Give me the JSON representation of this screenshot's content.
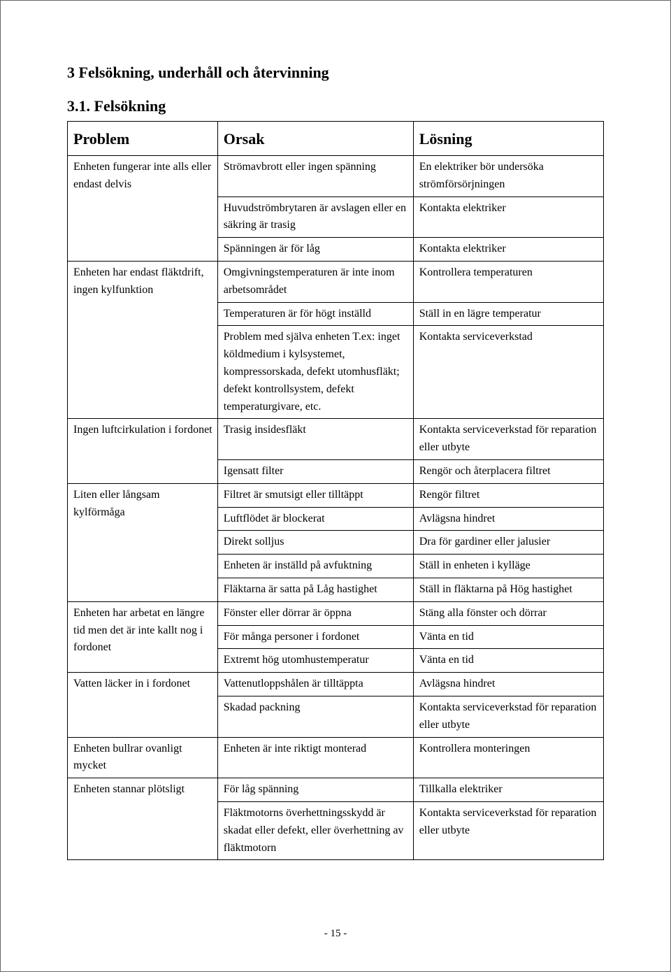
{
  "section_title": "3 Felsökning, underhåll och återvinning",
  "subsection_title": "3.1. Felsökning",
  "columns": {
    "problem": "Problem",
    "cause": "Orsak",
    "solution": "Lösning"
  },
  "rows": [
    {
      "group_first": true,
      "rowspan": 3,
      "problem": "Enheten fungerar inte alls eller endast delvis",
      "cause": "Strömavbrott eller ingen spänning",
      "solution": "En elektriker bör undersöka strömförsörjningen"
    },
    {
      "group_first": false,
      "rowspan": 0,
      "problem": "",
      "cause": "Huvudströmbrytaren är avslagen eller en säkring är trasig",
      "solution": "Kontakta elektriker"
    },
    {
      "group_first": false,
      "rowspan": 0,
      "problem": "",
      "cause": "Spänningen är för låg",
      "solution": "Kontakta elektriker"
    },
    {
      "group_first": true,
      "rowspan": 3,
      "problem": "Enheten har endast fläktdrift, ingen kylfunktion",
      "cause": "Omgivningstemperaturen är inte inom arbetsområdet",
      "solution": "Kontrollera temperaturen"
    },
    {
      "group_first": false,
      "rowspan": 0,
      "problem": "",
      "cause": "Temperaturen är för högt inställd",
      "solution": "Ställ in en lägre temperatur"
    },
    {
      "group_first": false,
      "rowspan": 0,
      "problem": "",
      "cause": "Problem med själva enheten T.ex: inget köldmedium i kylsystemet, kompressorskada, defekt utomhusfläkt; defekt kontrollsystem, defekt temperaturgivare, etc.",
      "solution": "Kontakta serviceverkstad"
    },
    {
      "group_first": true,
      "rowspan": 2,
      "problem": "Ingen luftcirkulation i fordonet",
      "cause": "Trasig insidesfläkt",
      "solution": "Kontakta serviceverkstad för reparation eller utbyte"
    },
    {
      "group_first": false,
      "rowspan": 0,
      "problem": "",
      "cause": "Igensatt filter",
      "solution": "Rengör och återplacera filtret"
    },
    {
      "group_first": true,
      "rowspan": 5,
      "problem": "Liten eller långsam kylförmåga",
      "cause": "Filtret är smutsigt eller tilltäppt",
      "solution": "Rengör filtret"
    },
    {
      "group_first": false,
      "rowspan": 0,
      "problem": "",
      "cause": "Luftflödet är blockerat",
      "solution": "Avlägsna hindret"
    },
    {
      "group_first": false,
      "rowspan": 0,
      "problem": "",
      "cause": "Direkt solljus",
      "solution": "Dra för gardiner eller jalusier"
    },
    {
      "group_first": false,
      "rowspan": 0,
      "problem": "",
      "cause": "Enheten är inställd på avfuktning",
      "solution": "Ställ in enheten i kylläge"
    },
    {
      "group_first": false,
      "rowspan": 0,
      "problem": "",
      "cause": "Fläktarna är satta på Låg hastighet",
      "solution": "Ställ in fläktarna på Hög hastighet"
    },
    {
      "group_first": true,
      "rowspan": 3,
      "problem": "Enheten har arbetat en längre tid men det är inte kallt nog i fordonet",
      "cause": "Fönster eller dörrar är öppna",
      "solution": "Stäng alla fönster och dörrar"
    },
    {
      "group_first": false,
      "rowspan": 0,
      "problem": "",
      "cause": "För många personer i fordonet",
      "solution": "Vänta en tid"
    },
    {
      "group_first": false,
      "rowspan": 0,
      "problem": "",
      "cause": "Extremt hög utomhustemperatur",
      "solution": "Vänta en tid"
    },
    {
      "group_first": true,
      "rowspan": 2,
      "problem": "Vatten läcker in i fordonet",
      "cause": "Vattenutloppshålen är tilltäppta",
      "solution": "Avlägsna hindret"
    },
    {
      "group_first": false,
      "rowspan": 0,
      "problem": "",
      "cause": "Skadad packning",
      "solution": "Kontakta serviceverkstad för reparation eller utbyte"
    },
    {
      "group_first": true,
      "rowspan": 1,
      "problem": "Enheten bullrar ovanligt mycket",
      "cause": "Enheten är inte riktigt monterad",
      "solution": "Kontrollera monteringen"
    },
    {
      "group_first": true,
      "rowspan": 2,
      "problem": "Enheten stannar plötsligt",
      "cause": "För låg spänning",
      "solution": "Tillkalla elektriker"
    },
    {
      "group_first": false,
      "rowspan": 0,
      "problem": "",
      "cause": "Fläktmotorns överhettningsskydd är skadat eller defekt, eller överhettning av fläktmotorn",
      "solution": "Kontakta serviceverkstad för reparation eller utbyte"
    }
  ],
  "page_number": "- 15 -",
  "colors": {
    "page_bg": "#ffffff",
    "border": "#000000",
    "text": "#000000"
  },
  "fontsize": {
    "heading": 22,
    "body": 16
  }
}
